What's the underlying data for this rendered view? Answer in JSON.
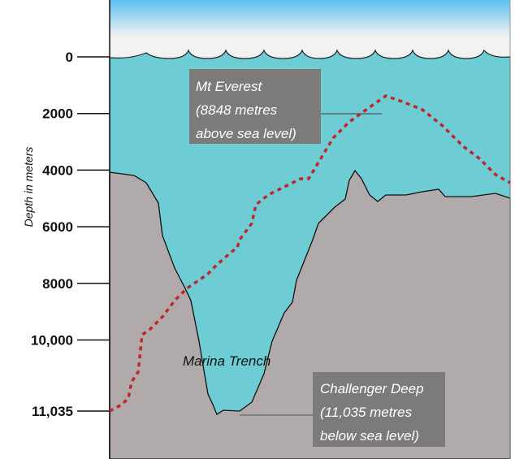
{
  "axis": {
    "label": "Depth in meters",
    "ticks": [
      "0",
      "2000",
      "4000",
      "6000",
      "8000",
      "10,000",
      "11,035"
    ],
    "tick_values": [
      0,
      2000,
      4000,
      6000,
      8000,
      10000,
      11035
    ]
  },
  "annotations": {
    "everest": [
      "Mt Everest",
      "(8848 metres",
      "above sea level)"
    ],
    "challenger": [
      "Challenger Deep",
      "(11,035  metres",
      "below sea level)"
    ],
    "trench": "Marina Trench"
  },
  "colors": {
    "water": "#6dccd4",
    "seabed": "#b1aaab",
    "sky_top": "#5cc0ef",
    "everest_line": "#c0272d",
    "label_box": "#7d7a7a"
  }
}
